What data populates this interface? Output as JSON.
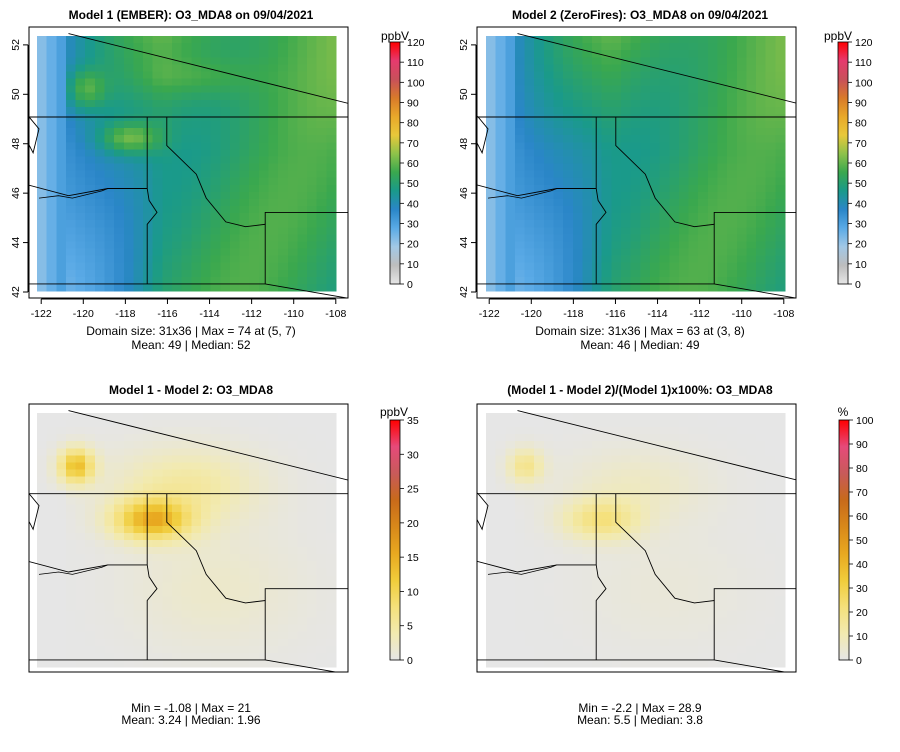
{
  "chart_data": [
    {
      "type": "heatmap",
      "title": "Model 1 (EMBER): O3_MDA8 on 09/04/2021",
      "x_ticks": [
        "-122",
        "-120",
        "-118",
        "-116",
        "-114",
        "-112",
        "-110",
        "-108"
      ],
      "y_ticks": [
        "42",
        "44",
        "46",
        "48",
        "50",
        "52"
      ],
      "xlim": [
        -122.2,
        -107.8
      ],
      "ylim": [
        42,
        52.4
      ],
      "colorbar_unit": "ppbV",
      "colorbar_ticks": [
        "0",
        "10",
        "20",
        "30",
        "40",
        "50",
        "60",
        "70",
        "80",
        "90",
        "100",
        "110",
        "120"
      ],
      "colorbar_range": [
        0,
        120
      ],
      "colorbar_palette": [
        "#e6e6e6",
        "#bdbdbd",
        "#a2c8e6",
        "#5aaae6",
        "#2a86c8",
        "#1a9a8a",
        "#3aa84e",
        "#8ec24a",
        "#e8c83a",
        "#e8a82a",
        "#d87a2a",
        "#c8505a",
        "#e63a6e",
        "#ff0000"
      ],
      "grid_size": "31x36",
      "caption_line1": "Domain size: 31x36 | Max = 74 at (5, 7)",
      "caption_line2": "Mean: 49 |  Median: 52",
      "summary": {
        "max": 74,
        "mean": 49,
        "median": 52
      },
      "show_axes": true
    },
    {
      "type": "heatmap",
      "title": "Model 2 (ZeroFires): O3_MDA8 on 09/04/2021",
      "x_ticks": [
        "-122",
        "-120",
        "-118",
        "-116",
        "-114",
        "-112",
        "-110",
        "-108"
      ],
      "y_ticks": [
        "42",
        "44",
        "46",
        "48",
        "50",
        "52"
      ],
      "xlim": [
        -122.2,
        -107.8
      ],
      "ylim": [
        42,
        52.4
      ],
      "colorbar_unit": "ppbV",
      "colorbar_ticks": [
        "0",
        "10",
        "20",
        "30",
        "40",
        "50",
        "60",
        "70",
        "80",
        "90",
        "100",
        "110",
        "120"
      ],
      "colorbar_range": [
        0,
        120
      ],
      "colorbar_palette": [
        "#e6e6e6",
        "#bdbdbd",
        "#a2c8e6",
        "#5aaae6",
        "#2a86c8",
        "#1a9a8a",
        "#3aa84e",
        "#8ec24a",
        "#e8c83a",
        "#e8a82a",
        "#d87a2a",
        "#c8505a",
        "#e63a6e",
        "#ff0000"
      ],
      "grid_size": "31x36",
      "caption_line1": "Domain size: 31x36 | Max = 63 at (3, 8)",
      "caption_line2": "Mean: 46 |  Median: 49",
      "summary": {
        "max": 63,
        "mean": 46,
        "median": 49
      },
      "show_axes": true
    },
    {
      "type": "heatmap",
      "title": "Model 1 - Model 2: O3_MDA8",
      "colorbar_unit": "ppbV",
      "colorbar_ticks": [
        "0",
        "5",
        "10",
        "15",
        "20",
        "25",
        "30",
        "35"
      ],
      "colorbar_range": [
        0,
        35
      ],
      "colorbar_palette": [
        "#e6e6e6",
        "#f2eab0",
        "#f5e07a",
        "#f0cc3a",
        "#e8a820",
        "#d8881a",
        "#c86a1a",
        "#c85a5a",
        "#e64a7a",
        "#ff0000"
      ],
      "caption_line1": "Min = -1.08 | Max = 21",
      "caption_line2": "Mean: 3.24 |  Median: 1.96",
      "summary": {
        "min": -1.08,
        "max": 21,
        "mean": 3.24,
        "median": 1.96
      },
      "show_axes": false
    },
    {
      "type": "heatmap",
      "title": "(Model 1 - Model 2)/(Model 1)x100%: O3_MDA8",
      "colorbar_unit": "%",
      "colorbar_ticks": [
        "0",
        "10",
        "20",
        "30",
        "40",
        "50",
        "60",
        "70",
        "80",
        "90",
        "100"
      ],
      "colorbar_range": [
        0,
        100
      ],
      "colorbar_palette": [
        "#e6e6e6",
        "#f2eab0",
        "#f5e07a",
        "#f0cc3a",
        "#e8a820",
        "#d8881a",
        "#c86a1a",
        "#c85a5a",
        "#e64a7a",
        "#ff0000"
      ],
      "caption_line1": "Min = -2.2 | Max = 28.9",
      "caption_line2": "Mean: 5.5 |  Median: 3.8",
      "summary": {
        "min": -2.2,
        "max": 28.9,
        "mean": 5.5,
        "median": 3.8
      },
      "show_axes": false
    }
  ]
}
